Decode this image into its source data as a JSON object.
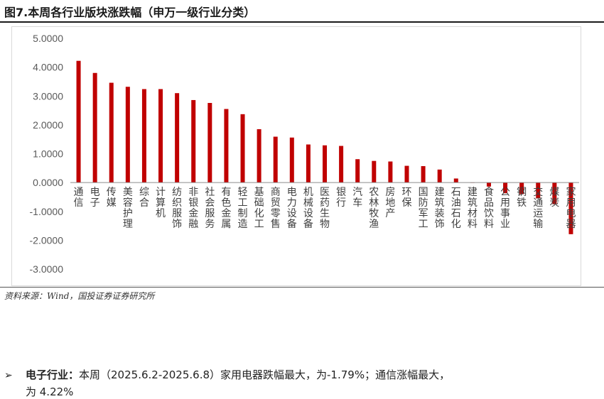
{
  "header": {
    "title": "图7.本周各行业版块涨跌幅（申万一级行业分类）"
  },
  "footer": {
    "source": "资料来源：Wind，国投证券证券研究所"
  },
  "commentary": {
    "bullet": "➢",
    "lead": "电子行业：",
    "text": "本周（2025.6.2-2025.6.8）家用电器跌幅最大，为-1.79%；通信涨幅最大，",
    "continuation": "为 4.22%"
  },
  "chart_data": {
    "type": "bar",
    "categories": [
      "通信",
      "电子",
      "传媒",
      "美容护理",
      "综合",
      "计算机",
      "纺织服饰",
      "非银金融",
      "社会服务",
      "有色金属",
      "轻工制造",
      "基础化工",
      "商贸零售",
      "电力设备",
      "机械设备",
      "医药生物",
      "银行",
      "汽车",
      "农林牧渔",
      "房地产",
      "环保",
      "国防军工",
      "建筑装饰",
      "石油石化",
      "建筑材料",
      "食品饮料",
      "公用事业",
      "钢铁",
      "交通运输",
      "煤炭",
      "家用电器"
    ],
    "values": [
      4.22,
      3.8,
      3.46,
      3.32,
      3.24,
      3.24,
      3.1,
      2.86,
      2.76,
      2.55,
      2.37,
      1.85,
      1.59,
      1.56,
      1.32,
      1.29,
      1.27,
      0.81,
      0.75,
      0.73,
      0.58,
      0.57,
      0.45,
      0.14,
      -0.01,
      -0.14,
      -0.37,
      -0.4,
      -0.55,
      -0.75,
      -1.79
    ],
    "yticks": [
      "5.0000",
      "4.0000",
      "3.0000",
      "2.0000",
      "1.0000",
      "0.0000",
      "-1.0000",
      "-2.0000",
      "-3.0000"
    ],
    "ylim": [
      -3,
      5
    ],
    "bar_color": "#c00000",
    "grid": false,
    "title": "",
    "xlabel": "",
    "ylabel": ""
  }
}
